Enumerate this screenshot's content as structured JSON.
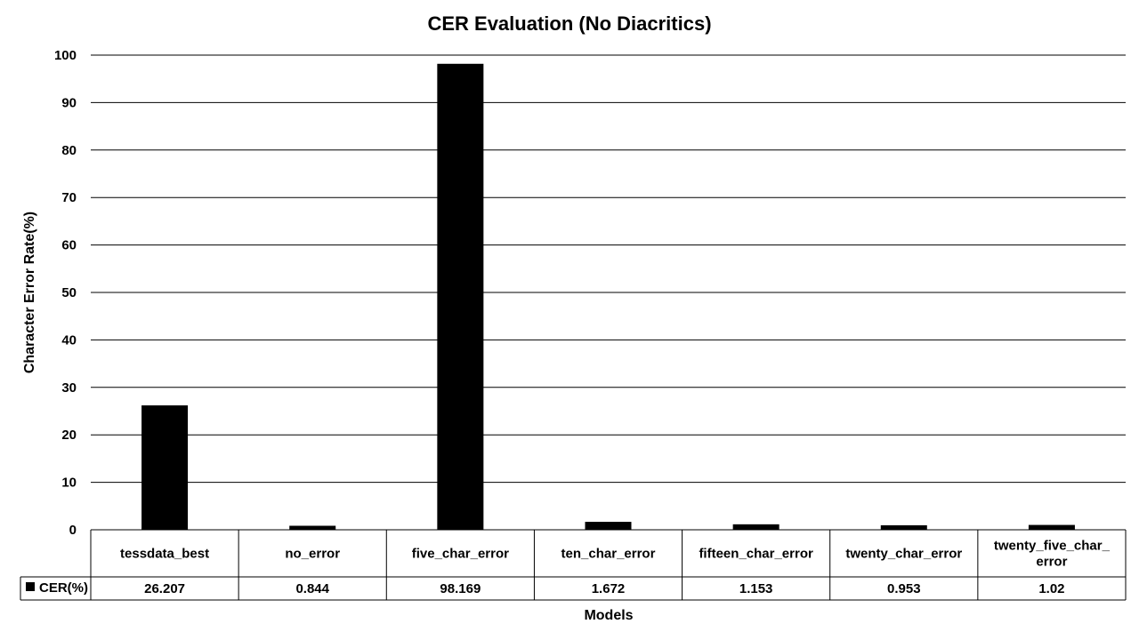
{
  "chart_data": {
    "type": "bar",
    "title": "CER Evaluation (No Diacritics)",
    "xlabel": "Models",
    "ylabel": "Character Error Rate(%)",
    "ylim": [
      0,
      100
    ],
    "yticks": [
      0,
      10,
      20,
      30,
      40,
      50,
      60,
      70,
      80,
      90,
      100
    ],
    "grid": true,
    "legend": "data-table-row",
    "colors": {
      "bar": "#000000",
      "grid": "#000000",
      "background": "#ffffff"
    },
    "categories": [
      [
        "tessdata_best"
      ],
      [
        "no_error"
      ],
      [
        "five_char_error"
      ],
      [
        "ten_char_error"
      ],
      [
        "fifteen_char_error"
      ],
      [
        "twenty_char_error"
      ],
      [
        "twenty_five_char_",
        "error"
      ]
    ],
    "series": [
      {
        "name": "CER(%)",
        "values": [
          26.207,
          0.844,
          98.169,
          1.672,
          1.153,
          0.953,
          1.02
        ],
        "labels": [
          "26.207",
          "0.844",
          "98.169",
          "1.672",
          "1.153",
          "0.953",
          "1.02"
        ]
      }
    ]
  }
}
